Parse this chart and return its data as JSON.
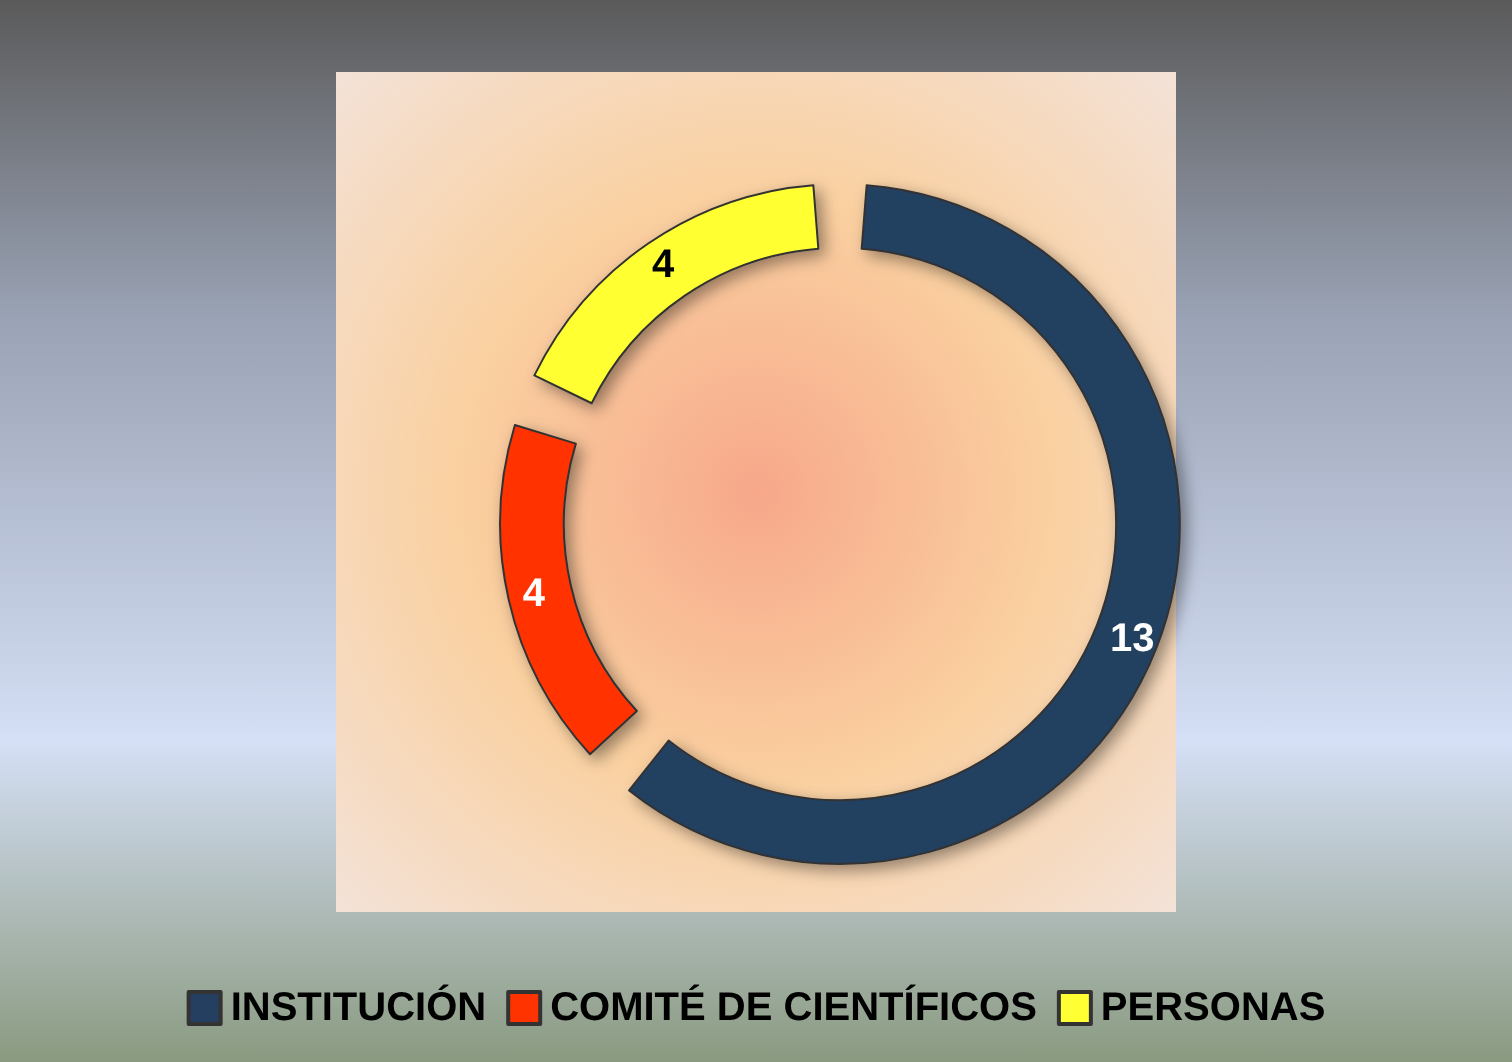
{
  "chart_data": {
    "type": "donut",
    "categories": [
      "INSTITUCIÓN",
      "COMITÉ DE CIENTÍFICOS",
      "PERSONAS"
    ],
    "values": [
      13,
      4,
      4
    ],
    "colors": [
      "#243f60",
      "#ff3300",
      "#ffff33"
    ],
    "data_labels": true,
    "legend": "bottom"
  }
}
